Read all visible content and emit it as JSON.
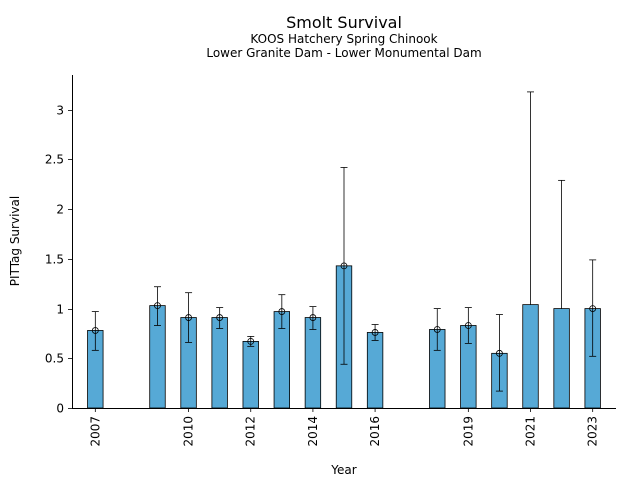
{
  "chart_data": {
    "type": "bar",
    "title": "Smolt Survival",
    "subtitle_lines": [
      "KOOS Hatchery Spring Chinook",
      "Lower Granite Dam - Lower Monumental Dam"
    ],
    "xlabel": "Year",
    "ylabel": "PITTag Survival",
    "ylim": [
      0,
      3.35
    ],
    "xlim": [
      2006.25,
      2023.75
    ],
    "yticks": [
      0,
      0.5,
      1,
      1.5,
      2,
      2.5,
      3
    ],
    "ytick_labels": [
      "0",
      "0.5",
      "1",
      "1.5",
      "2",
      "2.5",
      "3"
    ],
    "xticks": [
      2007,
      2010,
      2012,
      2014,
      2016,
      2019,
      2021,
      2023
    ],
    "xtick_labels": [
      "2007",
      "2010",
      "2012",
      "2014",
      "2016",
      "2019",
      "2021",
      "2023"
    ],
    "grid": false,
    "bar_color": "#56a9d6",
    "series": [
      {
        "x": [
          2007,
          2009,
          2010,
          2011,
          2012,
          2013,
          2014,
          2015,
          2016,
          2018,
          2019,
          2020,
          2021,
          2022,
          2023
        ],
        "values": [
          0.78,
          1.03,
          0.91,
          0.91,
          0.67,
          0.97,
          0.91,
          1.43,
          0.76,
          0.79,
          0.83,
          0.55,
          1.04,
          1.0,
          1.0
        ],
        "lower": [
          0.58,
          0.83,
          0.66,
          0.8,
          0.62,
          0.8,
          0.79,
          0.44,
          0.68,
          0.58,
          0.65,
          0.17,
          null,
          null,
          0.52
        ],
        "upper": [
          0.97,
          1.22,
          1.16,
          1.01,
          0.72,
          1.14,
          1.02,
          2.42,
          0.84,
          1.0,
          1.01,
          0.94,
          3.18,
          2.29,
          1.49
        ],
        "marker": [
          true,
          true,
          true,
          true,
          true,
          true,
          true,
          true,
          true,
          true,
          true,
          true,
          false,
          false,
          true
        ]
      }
    ]
  }
}
